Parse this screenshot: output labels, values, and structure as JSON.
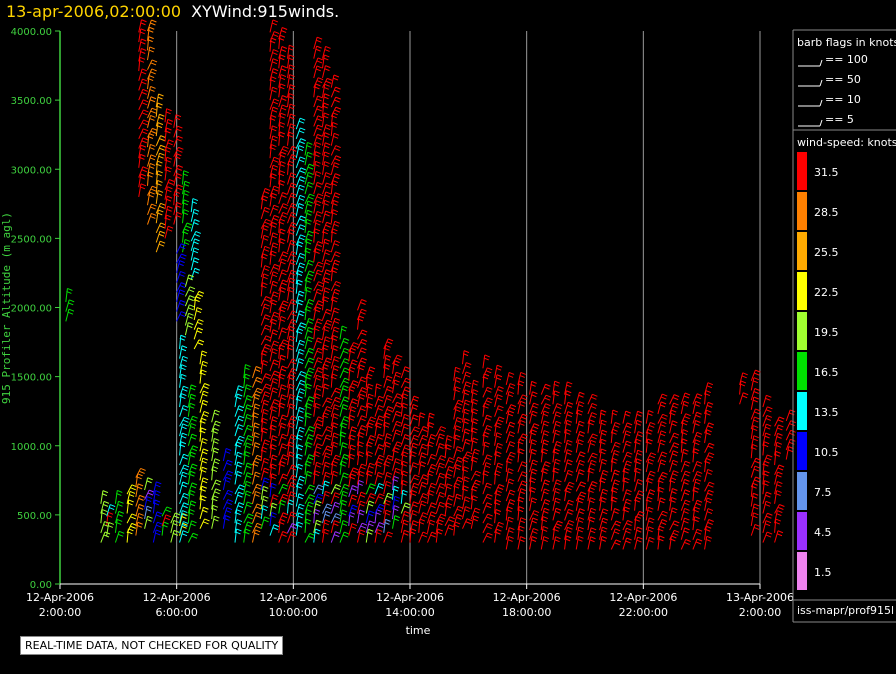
{
  "title": {
    "date": "13-apr-2006,02:00:00",
    "main": "XYWind:915winds."
  },
  "notice": "REAL-TIME DATA, NOT CHECKED FOR QUALITY",
  "legend": {
    "barb_header": "barb flags in knots",
    "barbs": [
      "== 100",
      "== 50",
      "== 10",
      "== 5"
    ],
    "speed_header": "wind-speed: knots",
    "source": "iss-mapr/prof915l",
    "speed_levels": [
      {
        "label": "31.5",
        "color": "#ff0000"
      },
      {
        "label": "28.5",
        "color": "#ff8000"
      },
      {
        "label": "25.5",
        "color": "#ffaa00"
      },
      {
        "label": "22.5",
        "color": "#ffff00"
      },
      {
        "label": "19.5",
        "color": "#a0ff30"
      },
      {
        "label": "16.5",
        "color": "#00e000"
      },
      {
        "label": "13.5",
        "color": "#00ffff"
      },
      {
        "label": "10.5",
        "color": "#0000ff"
      },
      {
        "label": "7.5",
        "color": "#6495ed"
      },
      {
        "label": "4.5",
        "color": "#9b30ff"
      },
      {
        "label": "1.5",
        "color": "#ee82ee"
      }
    ]
  },
  "chart_data": {
    "type": "scatter",
    "title": "XYWind:915winds.",
    "xlabel": "time",
    "ylabel": "915 Profiler Altitude (m agl)",
    "ylim": [
      0,
      4000
    ],
    "xlim": [
      0,
      24
    ],
    "x_tick_labels": [
      [
        "12-Apr-2006",
        "2:00:00"
      ],
      [
        "12-Apr-2006",
        "6:00:00"
      ],
      [
        "12-Apr-2006",
        "10:00:00"
      ],
      [
        "12-Apr-2006",
        "14:00:00"
      ],
      [
        "12-Apr-2006",
        "18:00:00"
      ],
      [
        "12-Apr-2006",
        "22:00:00"
      ],
      [
        "13-Apr-2006",
        "2:00:00"
      ]
    ],
    "y_tick_labels": [
      "0.00",
      "500.00",
      "1000.00",
      "1500.00",
      "2000.00",
      "2500.00",
      "3000.00",
      "3500.00",
      "4000.00"
    ],
    "grid": true,
    "series_note": "wind barbs colored by wind speed (knots)",
    "columns": [
      {
        "x": 0.2,
        "ymin": 1900,
        "ymax": 2100,
        "speed": 16.5
      },
      {
        "x": 1.6,
        "ymin": 350,
        "ymax": 500,
        "speed": 31.5
      },
      {
        "x": 1.4,
        "ymin": 300,
        "ymax": 600,
        "speed": 19.5
      },
      {
        "x": 1.9,
        "ymin": 300,
        "ymax": 600,
        "speed": 16.5
      },
      {
        "x": 2.3,
        "ymin": 300,
        "ymax": 700,
        "speed": 22.5
      },
      {
        "x": 2.6,
        "ymin": 350,
        "ymax": 800,
        "speed": 28.5
      },
      {
        "x": 2.9,
        "ymin": 400,
        "ymax": 700,
        "speed": 31.5
      },
      {
        "x": 3.2,
        "ymin": 300,
        "ymax": 650,
        "speed": 10.5
      },
      {
        "x": 3.5,
        "ymin": 350,
        "ymax": 550,
        "speed": 31.5
      },
      {
        "x": 3.8,
        "ymin": 300,
        "ymax": 500,
        "speed": 19.5
      },
      {
        "x": 4.1,
        "ymin": 350,
        "ymax": 450,
        "speed": 22.5
      },
      {
        "x": 2.7,
        "ymin": 2800,
        "ymax": 4000,
        "speed": 31.5
      },
      {
        "x": 3.0,
        "ymin": 2600,
        "ymax": 4000,
        "speed": 28.5
      },
      {
        "x": 3.3,
        "ymin": 2400,
        "ymax": 3500,
        "speed": 25.5
      },
      {
        "x": 3.6,
        "ymin": 2500,
        "ymax": 3400,
        "speed": 31.5
      },
      {
        "x": 3.9,
        "ymin": 2600,
        "ymax": 3300,
        "speed": 31.5
      },
      {
        "x": 4.2,
        "ymin": 2400,
        "ymax": 2900,
        "speed": 16.5
      },
      {
        "x": 4.5,
        "ymin": 2200,
        "ymax": 2700,
        "speed": 13.5
      },
      {
        "x": 4.0,
        "ymin": 1900,
        "ymax": 2400,
        "speed": 10.5
      },
      {
        "x": 4.3,
        "ymin": 1800,
        "ymax": 2200,
        "speed": 19.5
      },
      {
        "x": 4.6,
        "ymin": 1700,
        "ymax": 2100,
        "speed": 22.5
      },
      {
        "x": 4.1,
        "ymin": 300,
        "ymax": 1700,
        "speed": 13.5
      },
      {
        "x": 4.4,
        "ymin": 300,
        "ymax": 1400,
        "speed": 16.5
      },
      {
        "x": 4.8,
        "ymin": 400,
        "ymax": 1600,
        "speed": 22.5
      },
      {
        "x": 5.2,
        "ymin": 400,
        "ymax": 1200,
        "speed": 19.5
      },
      {
        "x": 5.6,
        "ymin": 400,
        "ymax": 900,
        "speed": 10.5
      },
      {
        "x": 6.0,
        "ymin": 300,
        "ymax": 1400,
        "speed": 13.5
      },
      {
        "x": 6.3,
        "ymin": 300,
        "ymax": 1500,
        "speed": 16.5
      },
      {
        "x": 6.6,
        "ymin": 300,
        "ymax": 1500,
        "speed": 28.5
      },
      {
        "x": 6.9,
        "ymin": 400,
        "ymax": 2800,
        "speed": 31.5
      },
      {
        "x": 7.2,
        "ymin": 350,
        "ymax": 4000,
        "speed": 31.5
      },
      {
        "x": 7.5,
        "ymin": 300,
        "ymax": 4000,
        "speed": 31.5
      },
      {
        "x": 7.8,
        "ymin": 300,
        "ymax": 3800,
        "speed": 31.5
      },
      {
        "x": 8.1,
        "ymin": 350,
        "ymax": 3300,
        "speed": 13.5
      },
      {
        "x": 8.4,
        "ymin": 300,
        "ymax": 3100,
        "speed": 16.5
      },
      {
        "x": 8.7,
        "ymin": 300,
        "ymax": 3900,
        "speed": 31.5
      },
      {
        "x": 9.0,
        "ymin": 300,
        "ymax": 3800,
        "speed": 31.5
      },
      {
        "x": 9.3,
        "ymin": 300,
        "ymax": 3600,
        "speed": 31.5
      },
      {
        "x": 9.6,
        "ymin": 300,
        "ymax": 1800,
        "speed": 16.5
      },
      {
        "x": 9.9,
        "ymin": 350,
        "ymax": 1700,
        "speed": 31.5
      },
      {
        "x": 10.2,
        "ymin": 300,
        "ymax": 2000,
        "speed": 31.5
      },
      {
        "x": 10.5,
        "ymin": 300,
        "ymax": 1500,
        "speed": 31.5
      },
      {
        "x": 10.8,
        "ymin": 300,
        "ymax": 1400,
        "speed": 31.5
      },
      {
        "x": 11.1,
        "ymin": 300,
        "ymax": 1700,
        "speed": 31.5
      },
      {
        "x": 11.4,
        "ymin": 400,
        "ymax": 1600,
        "speed": 31.5
      },
      {
        "x": 11.7,
        "ymin": 300,
        "ymax": 1500,
        "speed": 31.5
      },
      {
        "x": 12.0,
        "ymin": 300,
        "ymax": 1300,
        "speed": 31.5
      },
      {
        "x": 12.3,
        "ymin": 300,
        "ymax": 1200,
        "speed": 31.5
      },
      {
        "x": 12.6,
        "ymin": 300,
        "ymax": 1200,
        "speed": 31.5
      },
      {
        "x": 12.9,
        "ymin": 300,
        "ymax": 1100,
        "speed": 31.5
      },
      {
        "x": 13.2,
        "ymin": 350,
        "ymax": 1000,
        "speed": 31.5
      },
      {
        "x": 13.5,
        "ymin": 350,
        "ymax": 1500,
        "speed": 31.5
      },
      {
        "x": 13.8,
        "ymin": 400,
        "ymax": 1600,
        "speed": 31.5
      },
      {
        "x": 14.1,
        "ymin": 400,
        "ymax": 1400,
        "speed": 31.5
      },
      {
        "x": 14.5,
        "ymin": 300,
        "ymax": 1600,
        "speed": 31.5
      },
      {
        "x": 14.9,
        "ymin": 300,
        "ymax": 1500,
        "speed": 31.5
      },
      {
        "x": 15.3,
        "ymin": 250,
        "ymax": 1500,
        "speed": 31.5
      },
      {
        "x": 15.7,
        "ymin": 250,
        "ymax": 1500,
        "speed": 31.5
      },
      {
        "x": 16.1,
        "ymin": 250,
        "ymax": 1400,
        "speed": 31.5
      },
      {
        "x": 16.5,
        "ymin": 250,
        "ymax": 1400,
        "speed": 31.5
      },
      {
        "x": 16.9,
        "ymin": 250,
        "ymax": 1400,
        "speed": 31.5
      },
      {
        "x": 17.3,
        "ymin": 250,
        "ymax": 1400,
        "speed": 31.5
      },
      {
        "x": 17.7,
        "ymin": 250,
        "ymax": 1300,
        "speed": 31.5
      },
      {
        "x": 18.1,
        "ymin": 250,
        "ymax": 1300,
        "speed": 31.5
      },
      {
        "x": 18.5,
        "ymin": 250,
        "ymax": 1200,
        "speed": 31.5
      },
      {
        "x": 18.9,
        "ymin": 250,
        "ymax": 1200,
        "speed": 31.5
      },
      {
        "x": 19.3,
        "ymin": 250,
        "ymax": 1200,
        "speed": 31.5
      },
      {
        "x": 19.7,
        "ymin": 250,
        "ymax": 1200,
        "speed": 31.5
      },
      {
        "x": 20.1,
        "ymin": 250,
        "ymax": 1200,
        "speed": 31.5
      },
      {
        "x": 20.5,
        "ymin": 250,
        "ymax": 1300,
        "speed": 31.5
      },
      {
        "x": 20.9,
        "ymin": 250,
        "ymax": 1300,
        "speed": 31.5
      },
      {
        "x": 21.3,
        "ymin": 250,
        "ymax": 1300,
        "speed": 31.5
      },
      {
        "x": 21.7,
        "ymin": 250,
        "ymax": 1300,
        "speed": 31.5
      },
      {
        "x": 22.1,
        "ymin": 250,
        "ymax": 1400,
        "speed": 31.5
      },
      {
        "x": 23.3,
        "ymin": 1300,
        "ymax": 1500,
        "speed": 31.5
      },
      {
        "x": 23.7,
        "ymin": 350,
        "ymax": 1500,
        "speed": 31.5
      },
      {
        "x": 24.1,
        "ymin": 300,
        "ymax": 1300,
        "speed": 31.5
      },
      {
        "x": 24.5,
        "ymin": 300,
        "ymax": 1200,
        "speed": 31.5
      },
      {
        "x": 24.9,
        "ymin": 900,
        "ymax": 1200,
        "speed": 31.5
      }
    ]
  }
}
